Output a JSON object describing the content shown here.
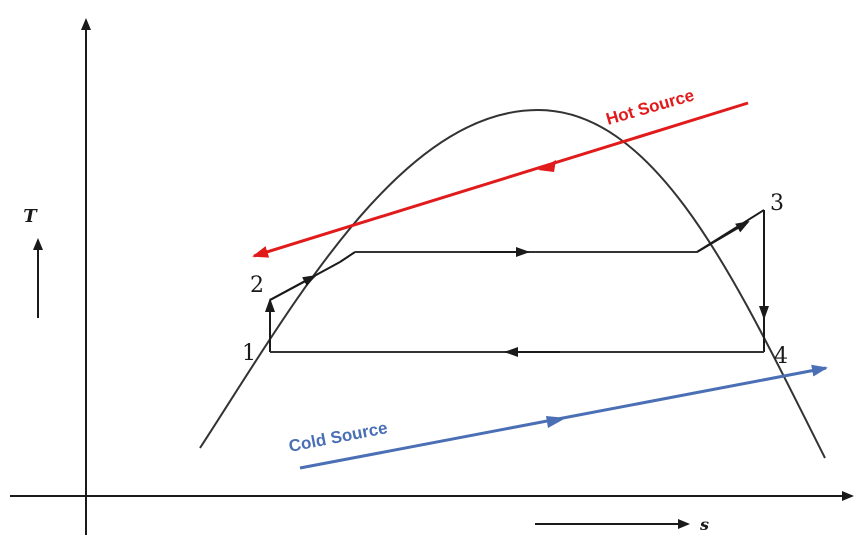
{
  "diagram": {
    "axes": {
      "y_label": "T",
      "x_label": "s"
    },
    "state_points": [
      "1",
      "2",
      "3",
      "4"
    ],
    "sources": {
      "hot": {
        "label": "Hot Source",
        "color": "#e11b1b"
      },
      "cold": {
        "label": "Cold Source",
        "color": "#4a6fb5"
      }
    },
    "cycle_color": "#1a1a1a"
  }
}
